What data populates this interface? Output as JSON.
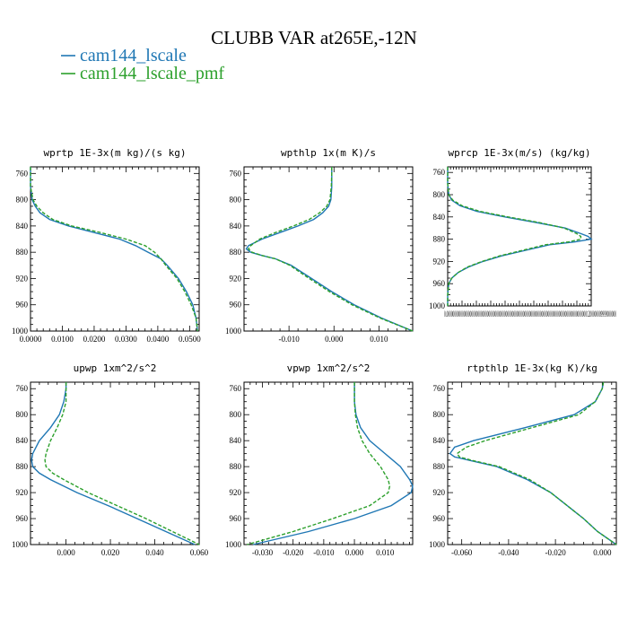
{
  "title": "CLUBB VAR at265E,-12N",
  "legend": [
    {
      "name": "cam144_lscale",
      "color": "#1f77b4",
      "dash": false
    },
    {
      "name": "cam144_lscale_pmf",
      "color": "#2ca02c",
      "dash": true
    }
  ],
  "chart_data": [
    {
      "type": "line",
      "title": "wprtp  1E-3x(m kg)/(s kg)",
      "xlim": [
        0,
        0.053
      ],
      "ylim": [
        1000,
        750
      ],
      "xticks": [
        "0.0000",
        "0.0100",
        "0.0200",
        "0.0300",
        "0.0400",
        "0.0500"
      ],
      "xtick_values": [
        0,
        0.01,
        0.02,
        0.03,
        0.04,
        0.05
      ],
      "yticks": [
        "760",
        "800",
        "840",
        "880",
        "920",
        "960",
        "1000"
      ],
      "ytick_values": [
        760,
        800,
        840,
        880,
        920,
        960,
        1000
      ],
      "y": [
        750,
        760,
        780,
        800,
        810,
        820,
        830,
        840,
        850,
        860,
        870,
        880,
        890,
        900,
        920,
        940,
        960,
        980,
        1000
      ],
      "series": [
        {
          "name": "cam144_lscale",
          "values": [
            0,
            0,
            0,
            0.0005,
            0.0015,
            0.003,
            0.006,
            0.012,
            0.02,
            0.028,
            0.033,
            0.037,
            0.041,
            0.043,
            0.0465,
            0.049,
            0.051,
            0.052,
            0.0525
          ]
        },
        {
          "name": "cam144_lscale_pmf",
          "values": [
            0,
            0,
            0,
            0.0008,
            0.002,
            0.004,
            0.007,
            0.013,
            0.022,
            0.03,
            0.036,
            0.039,
            0.041,
            0.0425,
            0.046,
            0.0485,
            0.0505,
            0.052,
            0.0525
          ]
        }
      ]
    },
    {
      "type": "line",
      "title": "wpthlp  1x(m K)/s",
      "xlim": [
        -0.02,
        0.0175
      ],
      "ylim": [
        1000,
        750
      ],
      "xticks": [
        "-0.010",
        "0.000",
        "0.010"
      ],
      "xtick_values": [
        -0.01,
        0.0,
        0.01
      ],
      "yticks": [
        "760",
        "800",
        "840",
        "880",
        "920",
        "960",
        "1000"
      ],
      "ytick_values": [
        760,
        800,
        840,
        880,
        920,
        960,
        1000
      ],
      "y": [
        750,
        760,
        780,
        800,
        810,
        820,
        830,
        840,
        850,
        860,
        870,
        875,
        880,
        885,
        890,
        900,
        920,
        940,
        960,
        980,
        1000
      ],
      "series": [
        {
          "name": "cam144_lscale",
          "values": [
            -0.0005,
            -0.0005,
            -0.0005,
            -0.0007,
            -0.0012,
            -0.0025,
            -0.0045,
            -0.008,
            -0.012,
            -0.016,
            -0.019,
            -0.0195,
            -0.0185,
            -0.016,
            -0.013,
            -0.0095,
            -0.005,
            -0.0005,
            0.0045,
            0.0105,
            0.0175
          ]
        },
        {
          "name": "cam144_lscale_pmf",
          "values": [
            -0.0005,
            -0.0005,
            -0.0006,
            -0.0009,
            -0.0016,
            -0.0032,
            -0.0055,
            -0.009,
            -0.013,
            -0.0165,
            -0.0185,
            -0.019,
            -0.0182,
            -0.016,
            -0.013,
            -0.0098,
            -0.0055,
            -0.001,
            0.004,
            0.0102,
            0.0175
          ]
        }
      ]
    },
    {
      "type": "line",
      "title": "wprcp  1E-3x(m/s) (kg/kg)",
      "xlim": [
        0,
        1.38e-05
      ],
      "ylim": [
        1000,
        750
      ],
      "xticks": [
        "0.0000000000000000000000000000000000000000000000000000000000000000000000000000000000000000001200000009999000000"
      ],
      "xtick_values": [
        0
      ],
      "yticks": [
        "760",
        "800",
        "840",
        "880",
        "920",
        "960",
        "1000"
      ],
      "ytick_values": [
        760,
        800,
        840,
        880,
        920,
        960,
        1000
      ],
      "y": [
        750,
        760,
        780,
        800,
        810,
        820,
        830,
        840,
        850,
        860,
        870,
        875,
        880,
        885,
        890,
        900,
        910,
        920,
        930,
        940,
        950,
        960,
        980,
        1000
      ],
      "series": [
        {
          "name": "cam144_lscale",
          "values": [
            0,
            0,
            0,
            1e-07,
            4e-07,
            1.2e-06,
            2.8e-06,
            5.5e-06,
            8.5e-06,
            1.13e-05,
            1.28e-05,
            1.35e-05,
            1.38e-05,
            1.22e-05,
            9.8e-06,
            7.5e-06,
            5.2e-06,
            3.4e-06,
            2e-06,
            1e-06,
            4e-07,
            1e-07,
            0,
            0
          ]
        },
        {
          "name": "cam144_lscale_pmf",
          "values": [
            0,
            0,
            0,
            1e-07,
            5e-07,
            1.4e-06,
            3.1e-06,
            5.8e-06,
            8.8e-06,
            1.12e-05,
            1.24e-05,
            1.28e-05,
            1.28e-05,
            1.16e-05,
            9.4e-06,
            7.2e-06,
            5e-06,
            3.3e-06,
            1.9e-06,
            1e-06,
            4e-07,
            1e-07,
            0,
            0
          ]
        }
      ]
    },
    {
      "type": "line",
      "title": "upwp  1xm^2/s^2",
      "xlim": [
        -0.016,
        0.06
      ],
      "ylim": [
        1000,
        750
      ],
      "xticks": [
        "0.000",
        "0.020",
        "0.040",
        "0.060"
      ],
      "xtick_values": [
        0,
        0.02,
        0.04,
        0.06
      ],
      "yticks": [
        "760",
        "800",
        "840",
        "880",
        "920",
        "960",
        "1000"
      ],
      "ytick_values": [
        760,
        800,
        840,
        880,
        920,
        960,
        1000
      ],
      "y": [
        750,
        760,
        780,
        800,
        820,
        840,
        860,
        870,
        880,
        890,
        900,
        920,
        940,
        960,
        980,
        1000
      ],
      "series": [
        {
          "name": "cam144_lscale",
          "values": [
            0,
            0,
            -0.001,
            -0.003,
            -0.007,
            -0.012,
            -0.015,
            -0.0155,
            -0.015,
            -0.012,
            -0.007,
            0.005,
            0.019,
            0.032,
            0.045,
            0.058
          ]
        },
        {
          "name": "cam144_lscale_pmf",
          "values": [
            0,
            0,
            0,
            -0.0015,
            -0.004,
            -0.007,
            -0.009,
            -0.0095,
            -0.009,
            -0.006,
            -0.001,
            0.01,
            0.023,
            0.036,
            0.048,
            0.06
          ]
        }
      ]
    },
    {
      "type": "line",
      "title": "vpwp  1xm^2/s^2",
      "xlim": [
        -0.036,
        0.019
      ],
      "ylim": [
        1000,
        750
      ],
      "xticks": [
        "-0.030",
        "-0.020",
        "-0.010",
        "0.000",
        "0.010"
      ],
      "xtick_values": [
        -0.03,
        -0.02,
        -0.01,
        0,
        0.01
      ],
      "yticks": [
        "760",
        "800",
        "840",
        "880",
        "920",
        "960",
        "1000"
      ],
      "ytick_values": [
        760,
        800,
        840,
        880,
        920,
        960,
        1000
      ],
      "y": [
        750,
        760,
        780,
        800,
        820,
        840,
        860,
        880,
        900,
        910,
        920,
        940,
        960,
        980,
        1000
      ],
      "series": [
        {
          "name": "cam144_lscale",
          "values": [
            0,
            0,
            0,
            0.0005,
            0.002,
            0.005,
            0.01,
            0.015,
            0.018,
            0.019,
            0.0185,
            0.012,
            0.0,
            -0.015,
            -0.033
          ]
        },
        {
          "name": "cam144_lscale_pmf",
          "values": [
            0,
            0,
            0,
            0.0003,
            0.001,
            0.0025,
            0.005,
            0.0085,
            0.011,
            0.0115,
            0.011,
            0.005,
            -0.007,
            -0.02,
            -0.035
          ]
        }
      ]
    },
    {
      "type": "line",
      "title": "rtpthlp  1E-3x(kg K)/kg",
      "xlim": [
        -0.066,
        0.006
      ],
      "ylim": [
        1000,
        750
      ],
      "xticks": [
        "-0.060",
        "-0.040",
        "-0.020",
        "0.000"
      ],
      "xtick_values": [
        -0.06,
        -0.04,
        -0.02,
        0
      ],
      "yticks": [
        "760",
        "800",
        "840",
        "880",
        "920",
        "960",
        "1000"
      ],
      "ytick_values": [
        760,
        800,
        840,
        880,
        920,
        960,
        1000
      ],
      "y": [
        750,
        760,
        780,
        800,
        820,
        840,
        850,
        860,
        865,
        870,
        880,
        900,
        920,
        940,
        960,
        980,
        1000
      ],
      "series": [
        {
          "name": "cam144_lscale",
          "values": [
            0.0005,
            0,
            -0.003,
            -0.012,
            -0.033,
            -0.055,
            -0.063,
            -0.065,
            -0.063,
            -0.057,
            -0.045,
            -0.032,
            -0.022,
            -0.015,
            -0.008,
            -0.002,
            0.006
          ]
        },
        {
          "name": "cam144_lscale_pmf",
          "values": [
            0.0005,
            0,
            -0.003,
            -0.01,
            -0.03,
            -0.05,
            -0.058,
            -0.062,
            -0.061,
            -0.056,
            -0.044,
            -0.031,
            -0.022,
            -0.015,
            -0.008,
            -0.002,
            0.006
          ]
        }
      ]
    }
  ]
}
